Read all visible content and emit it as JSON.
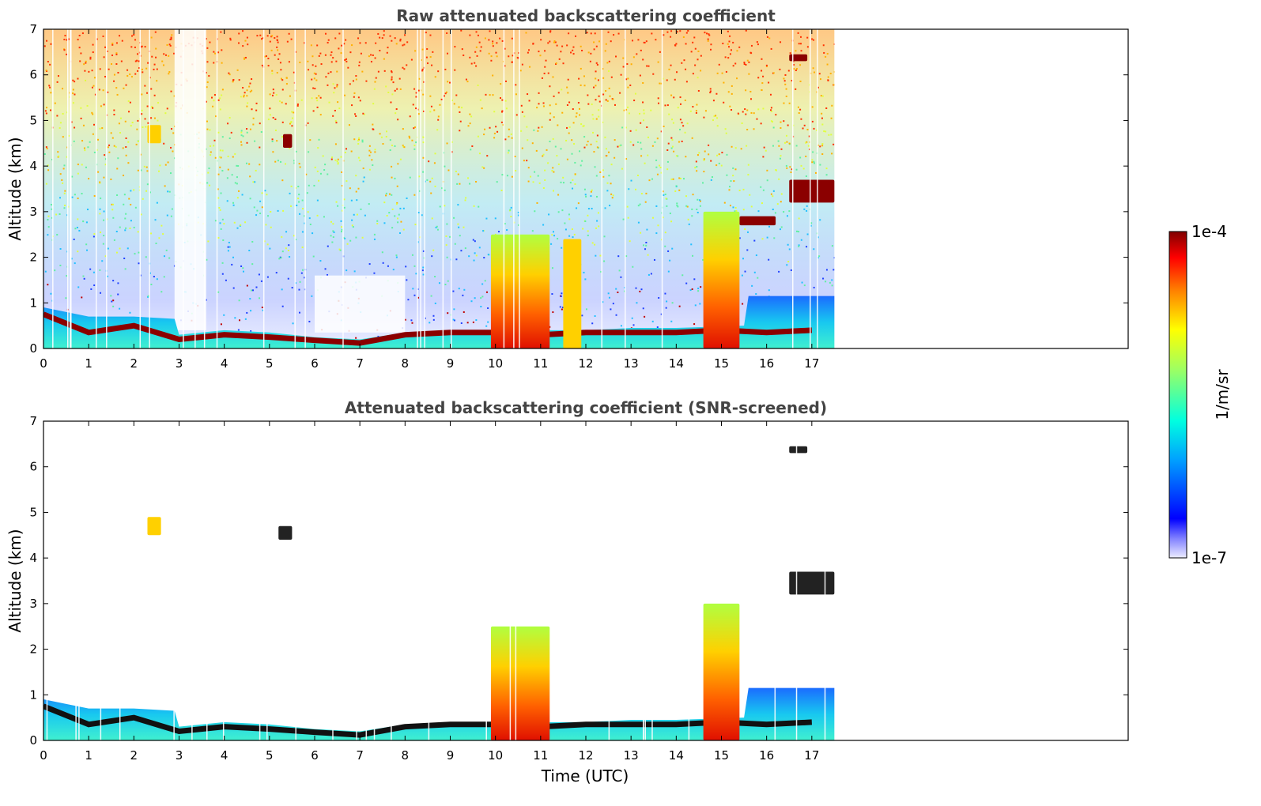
{
  "chart_data": [
    {
      "type": "heatmap",
      "title": "Raw attenuated backscattering coefficient",
      "xlabel": "",
      "ylabel": "Altitude (km)",
      "xlim": [
        0,
        24
      ],
      "ylim": [
        0,
        7
      ],
      "xticks": [
        0,
        1,
        2,
        3,
        4,
        5,
        6,
        7,
        8,
        9,
        10,
        11,
        12,
        13,
        14,
        15,
        16,
        17
      ],
      "yticks": [
        0,
        1,
        2,
        3,
        4,
        5,
        6,
        7
      ],
      "data_end_time": 17.5,
      "features": [
        {
          "label": "boundary layer top",
          "points": [
            [
              0,
              0.75
            ],
            [
              1,
              0.35
            ],
            [
              2,
              0.5
            ],
            [
              3,
              0.2
            ],
            [
              4,
              0.3
            ],
            [
              5,
              0.25
            ],
            [
              6,
              0.18
            ],
            [
              7,
              0.12
            ],
            [
              8,
              0.3
            ],
            [
              9,
              0.35
            ],
            [
              10,
              0.35
            ],
            [
              11,
              0.3
            ],
            [
              12,
              0.35
            ],
            [
              13,
              0.35
            ],
            [
              14,
              0.35
            ],
            [
              15,
              0.4
            ],
            [
              16,
              0.35
            ],
            [
              17,
              0.4
            ]
          ]
        },
        {
          "label": "aerosol layer",
          "x": [
            2.3,
            2.6
          ],
          "y": [
            4.5,
            4.9
          ]
        },
        {
          "label": "cloud",
          "x": [
            5.3,
            5.5
          ],
          "y": [
            4.4,
            4.7
          ]
        },
        {
          "label": "cloud",
          "x": [
            16.5,
            16.9
          ],
          "y": [
            6.3,
            6.45
          ]
        },
        {
          "label": "cloud",
          "x": [
            16.5,
            17.5
          ],
          "y": [
            3.2,
            3.7
          ]
        },
        {
          "label": "cloud",
          "x": [
            15.4,
            16.2
          ],
          "y": [
            2.7,
            2.9
          ]
        },
        {
          "label": "precipitating cloud",
          "x": [
            9.9,
            11.2
          ],
          "y": [
            0,
            2.5
          ]
        },
        {
          "label": "precipitating cloud",
          "x": [
            14.6,
            15.4
          ],
          "y": [
            0,
            3.0
          ]
        },
        {
          "label": "aerosol layer",
          "x": [
            11.5,
            11.9
          ],
          "y": [
            0,
            2.4
          ]
        }
      ]
    },
    {
      "type": "heatmap",
      "title": "Attenuated backscattering coefficient (SNR-screened)",
      "xlabel": "Time (UTC)",
      "ylabel": "Altitude (km)",
      "xlim": [
        0,
        24
      ],
      "ylim": [
        0,
        7
      ],
      "xticks": [
        0,
        1,
        2,
        3,
        4,
        5,
        6,
        7,
        8,
        9,
        10,
        11,
        12,
        13,
        14,
        15,
        16,
        17
      ],
      "yticks": [
        0,
        1,
        2,
        3,
        4,
        5,
        6,
        7
      ],
      "data_end_time": 17.5,
      "features": [
        {
          "label": "boundary layer",
          "x": [
            0,
            17.5
          ],
          "y": [
            0,
            0.9
          ]
        },
        {
          "label": "aerosol layer",
          "x": [
            2.3,
            2.6
          ],
          "y": [
            4.5,
            4.9
          ]
        },
        {
          "label": "cloud",
          "x": [
            5.2,
            5.5
          ],
          "y": [
            4.4,
            4.7
          ]
        },
        {
          "label": "cloud",
          "x": [
            16.5,
            16.9
          ],
          "y": [
            6.3,
            6.45
          ]
        },
        {
          "label": "cloud",
          "x": [
            16.5,
            17.5
          ],
          "y": [
            3.2,
            3.7
          ]
        },
        {
          "label": "precipitating cloud",
          "x": [
            9.9,
            11.2
          ],
          "y": [
            0,
            2.5
          ]
        },
        {
          "label": "precipitating cloud",
          "x": [
            14.6,
            15.4
          ],
          "y": [
            0,
            3.0
          ]
        }
      ]
    }
  ],
  "colorbar": {
    "label": "1/m/sr",
    "max_label": "1e-4",
    "min_label": "1e-7",
    "scale": "log",
    "colormap": [
      "#e6e6f5",
      "#0000ff",
      "#00a0ff",
      "#00ffff",
      "#80ff80",
      "#ffff00",
      "#ff8000",
      "#ff0000",
      "#800000"
    ]
  }
}
